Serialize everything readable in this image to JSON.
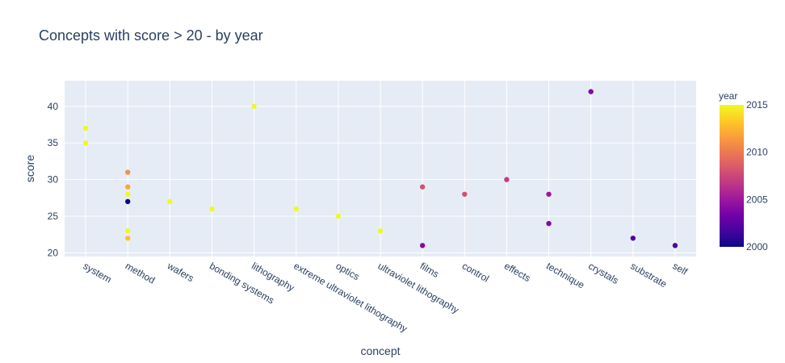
{
  "chart_data": {
    "type": "scatter",
    "title": "Concepts with score > 20 - by year",
    "xlabel": "concept",
    "ylabel": "score",
    "ylim": [
      19.5,
      43.5
    ],
    "yticks": [
      20,
      25,
      30,
      35,
      40
    ],
    "grid": true,
    "categories": [
      "system",
      "method",
      "wafers",
      "bonding systems",
      "lithography",
      "extreme ultraviolet lithography",
      "optics",
      "ultraviolet lithography",
      "films",
      "control",
      "effects",
      "technique",
      "crystals",
      "substrate",
      "self"
    ],
    "points": [
      {
        "x": "system",
        "y": 37,
        "year": 2015
      },
      {
        "x": "system",
        "y": 35,
        "year": 2015
      },
      {
        "x": "method",
        "y": 31,
        "year": 2011
      },
      {
        "x": "method",
        "y": 29,
        "year": 2012
      },
      {
        "x": "method",
        "y": 28,
        "year": 2015
      },
      {
        "x": "method",
        "y": 27,
        "year": 2000
      },
      {
        "x": "method",
        "y": 23,
        "year": 2015
      },
      {
        "x": "method",
        "y": 22,
        "year": 2013
      },
      {
        "x": "wafers",
        "y": 27,
        "year": 2015
      },
      {
        "x": "bonding systems",
        "y": 26,
        "year": 2015
      },
      {
        "x": "lithography",
        "y": 40,
        "year": 2015
      },
      {
        "x": "extreme ultraviolet lithography",
        "y": 26,
        "year": 2015
      },
      {
        "x": "optics",
        "y": 25,
        "year": 2015
      },
      {
        "x": "ultraviolet lithography",
        "y": 23,
        "year": 2015
      },
      {
        "x": "films",
        "y": 29,
        "year": 2008
      },
      {
        "x": "films",
        "y": 21,
        "year": 2004
      },
      {
        "x": "control",
        "y": 28,
        "year": 2008
      },
      {
        "x": "effects",
        "y": 30,
        "year": 2007
      },
      {
        "x": "technique",
        "y": 28,
        "year": 2005
      },
      {
        "x": "technique",
        "y": 24,
        "year": 2004
      },
      {
        "x": "crystals",
        "y": 42,
        "year": 2004
      },
      {
        "x": "substrate",
        "y": 22,
        "year": 2002
      },
      {
        "x": "self",
        "y": 21,
        "year": 2002
      }
    ],
    "colorbar": {
      "title": "year",
      "range": [
        2000,
        2015
      ],
      "ticks": [
        2000,
        2005,
        2010,
        2015
      ],
      "colorscale": [
        "#0d0887",
        "#46039f",
        "#7201a8",
        "#9c179e",
        "#bd3786",
        "#d8576b",
        "#ed7953",
        "#fb9f3a",
        "#fdca26",
        "#f0f921"
      ]
    },
    "colors": {
      "plot_bg": "#e5ecf6",
      "grid": "#ffffff",
      "text": "#2a3f5f"
    }
  }
}
